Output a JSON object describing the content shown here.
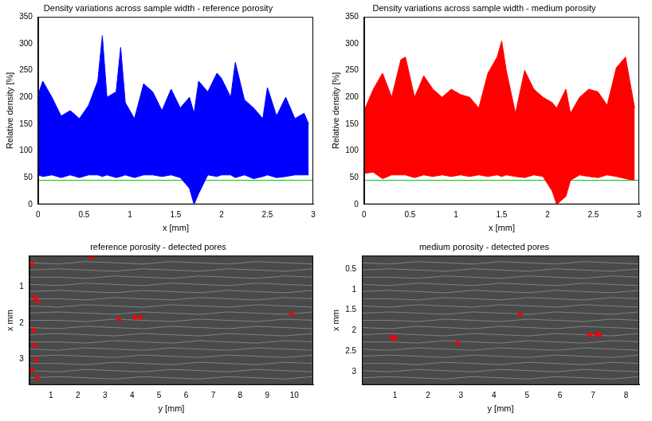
{
  "chart_data": [
    {
      "type": "scatter",
      "title": "Density variations across sample width - reference porosity",
      "x_label": "x [mm]",
      "y_label": "Relative density [%]",
      "color": "#0000ff",
      "x": [
        0.0,
        0.05,
        0.15,
        0.25,
        0.35,
        0.45,
        0.55,
        0.65,
        0.7,
        0.75,
        0.85,
        0.9,
        0.95,
        1.05,
        1.15,
        1.25,
        1.35,
        1.45,
        1.55,
        1.65,
        1.7,
        1.75,
        1.85,
        1.95,
        2.0,
        2.1,
        2.15,
        2.25,
        2.35,
        2.45,
        2.5,
        2.6,
        2.7,
        2.8,
        2.9,
        2.95
      ],
      "upper": [
        205,
        230,
        200,
        165,
        175,
        160,
        185,
        230,
        315,
        200,
        210,
        293,
        190,
        160,
        225,
        210,
        175,
        215,
        180,
        200,
        170,
        230,
        210,
        245,
        235,
        200,
        265,
        195,
        180,
        160,
        218,
        165,
        200,
        160,
        170,
        150
      ],
      "lower": [
        55,
        52,
        55,
        50,
        55,
        50,
        55,
        55,
        52,
        55,
        50,
        52,
        55,
        50,
        55,
        55,
        52,
        55,
        50,
        30,
        0,
        20,
        55,
        52,
        55,
        55,
        50,
        55,
        48,
        52,
        55,
        50,
        52,
        55,
        55,
        55
      ],
      "threshold": {
        "value": 45,
        "color": "#00cc00"
      },
      "xlim": [
        0,
        3
      ],
      "xticks": [
        0,
        0.5,
        1,
        1.5,
        2,
        2.5,
        3
      ],
      "ylim": [
        0,
        350
      ],
      "yticks": [
        0,
        50,
        100,
        150,
        200,
        250,
        300,
        350
      ],
      "grid": false
    },
    {
      "type": "scatter",
      "title": "Density variations across sample width - medium porosity",
      "x_label": "x [mm]",
      "y_label": "Relative density [%]",
      "color": "#ff0000",
      "x": [
        0.0,
        0.1,
        0.2,
        0.3,
        0.4,
        0.45,
        0.55,
        0.65,
        0.75,
        0.85,
        0.95,
        1.05,
        1.15,
        1.25,
        1.35,
        1.45,
        1.5,
        1.55,
        1.65,
        1.75,
        1.85,
        1.95,
        2.05,
        2.1,
        2.2,
        2.25,
        2.35,
        2.45,
        2.55,
        2.65,
        2.75,
        2.85,
        2.95
      ],
      "upper": [
        175,
        215,
        245,
        200,
        270,
        275,
        200,
        240,
        215,
        200,
        215,
        205,
        200,
        180,
        245,
        275,
        305,
        250,
        170,
        250,
        215,
        200,
        190,
        180,
        215,
        170,
        200,
        215,
        210,
        185,
        255,
        275,
        180
      ],
      "lower": [
        58,
        60,
        48,
        55,
        55,
        55,
        50,
        55,
        52,
        55,
        52,
        55,
        52,
        55,
        52,
        55,
        52,
        55,
        52,
        50,
        55,
        52,
        25,
        0,
        15,
        45,
        55,
        52,
        50,
        55,
        52,
        48,
        45
      ],
      "threshold": {
        "value": 45,
        "color": "#00cc00"
      },
      "xlim": [
        0,
        3
      ],
      "xticks": [
        0,
        0.5,
        1,
        1.5,
        2,
        2.5,
        3
      ],
      "ylim": [
        0,
        350
      ],
      "yticks": [
        0,
        50,
        100,
        150,
        200,
        250,
        300,
        350
      ],
      "grid": false
    },
    {
      "type": "scatter",
      "title": "reference porosity - detected pores",
      "x_label": "y [mm]",
      "y_label": "x mm",
      "color": "#ff0000",
      "x": [
        0.3,
        0.4,
        0.5,
        0.35,
        0.4,
        0.45,
        0.3,
        0.5,
        2.5,
        3.5,
        4.1,
        4.3,
        9.9
      ],
      "y": [
        0.4,
        1.3,
        1.4,
        2.2,
        2.6,
        3.0,
        3.3,
        3.5,
        0.2,
        1.9,
        1.85,
        1.85,
        1.75
      ],
      "xlim": [
        0.2,
        10.7
      ],
      "xticks": [
        1,
        2,
        3,
        4,
        5,
        6,
        7,
        8,
        9,
        10
      ],
      "ylim": [
        3.7,
        0.15
      ],
      "yticks": [
        1,
        2,
        3
      ],
      "grid": false
    },
    {
      "type": "scatter",
      "title": "medium porosity - detected pores",
      "x_label": "y [mm]",
      "y_label": "x mm",
      "color": "#ff0000",
      "x": [
        0.9,
        1.0,
        2.9,
        4.8,
        6.9,
        7.1,
        7.2
      ],
      "y": [
        2.15,
        2.2,
        2.3,
        1.6,
        2.1,
        2.1,
        2.1
      ],
      "xlim": [
        0,
        8.4
      ],
      "xticks": [
        1,
        2,
        3,
        4,
        5,
        6,
        7,
        8
      ],
      "ylim": [
        3.33,
        0.17
      ],
      "yticks": [
        0.5,
        1,
        1.5,
        2,
        2.5,
        3
      ],
      "grid": false
    }
  ]
}
